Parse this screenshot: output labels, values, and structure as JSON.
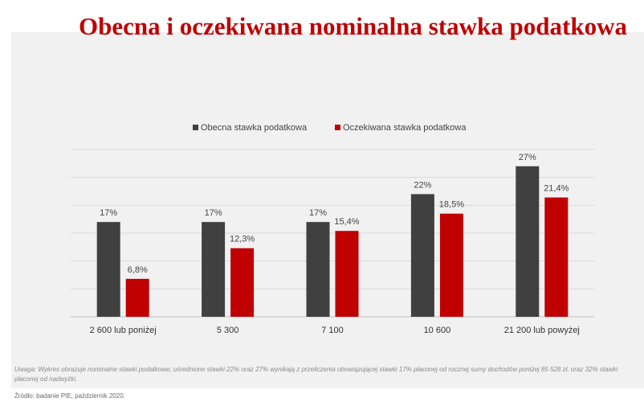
{
  "title": "Obecna i oczekiwana nominalna stawka podatkowa",
  "note": "Uwaga: Wykres obrazuje nominalne stawki podatkowe; uśrednione stawki 22% oraz 27% wynikają z przeliczenia obowiązującej stawki 17% płaconej od rocznej sumy dochodów poniżej 85 528 zł. oraz 32% stawki płaconej od nadwyżki.",
  "source": "Źródło: badanie PIE, październik 2020.",
  "colors": {
    "current": "#404040",
    "expected": "#c00000",
    "title": "#c00000"
  },
  "chart_data": {
    "type": "bar",
    "categories": [
      "2 600 lub poniżej",
      "5 300",
      "7 100",
      "10 600",
      "21 200 lub powyżej"
    ],
    "series": [
      {
        "name": "Obecna stawka podatkowa",
        "values": [
          17,
          17,
          17,
          22,
          27
        ],
        "labels": [
          "17%",
          "17%",
          "17%",
          "22%",
          "27%"
        ]
      },
      {
        "name": "Oczekiwana stawka podatkowa",
        "values": [
          6.8,
          12.3,
          15.4,
          18.5,
          21.4
        ],
        "labels": [
          "6,8%",
          "12,3%",
          "15,4%",
          "18,5%",
          "21,4%"
        ]
      }
    ],
    "ylim": [
      0,
      30
    ],
    "grid": true,
    "legend": "top-center"
  }
}
